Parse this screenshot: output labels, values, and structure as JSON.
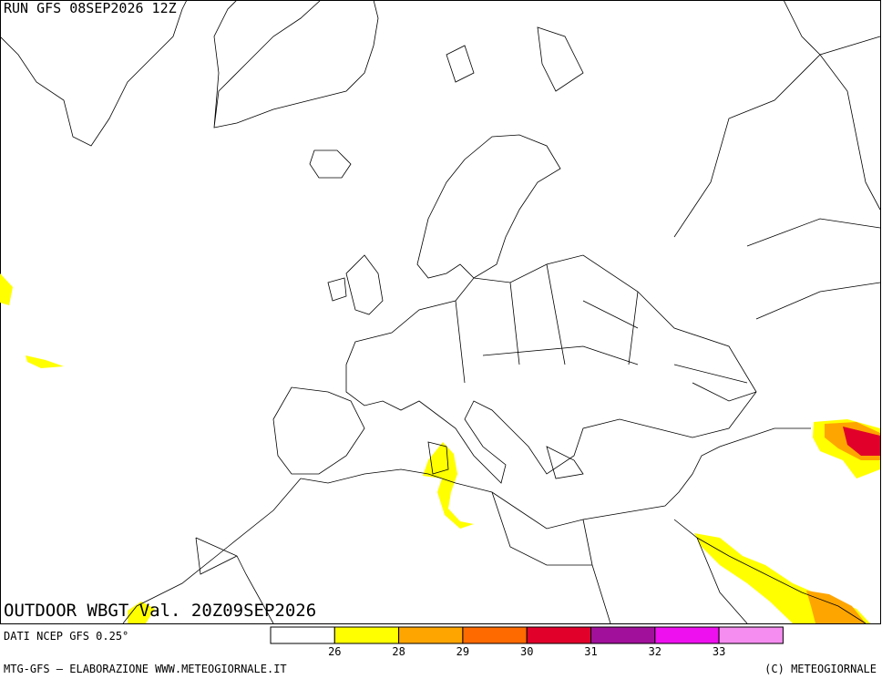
{
  "header": {
    "run": "RUN GFS 08SEP2026 12Z"
  },
  "map": {
    "title": "OUTDOOR WBGT Val. 20Z09SEP2026"
  },
  "source": "DATI NCEP GFS 0.25°",
  "legend": {
    "colors": [
      "#ffffff",
      "#ffff00",
      "#ffa500",
      "#ff6a00",
      "#e0002a",
      "#a0109a",
      "#ee10ee",
      "#f58cf0"
    ],
    "ticks": [
      26,
      28,
      29,
      30,
      31,
      32,
      33
    ]
  },
  "footer": {
    "left": "MTG-GFS — ELABORAZIONE WWW.METEOGIORNALE.IT",
    "right": "(C) METEOGIORNALE"
  }
}
